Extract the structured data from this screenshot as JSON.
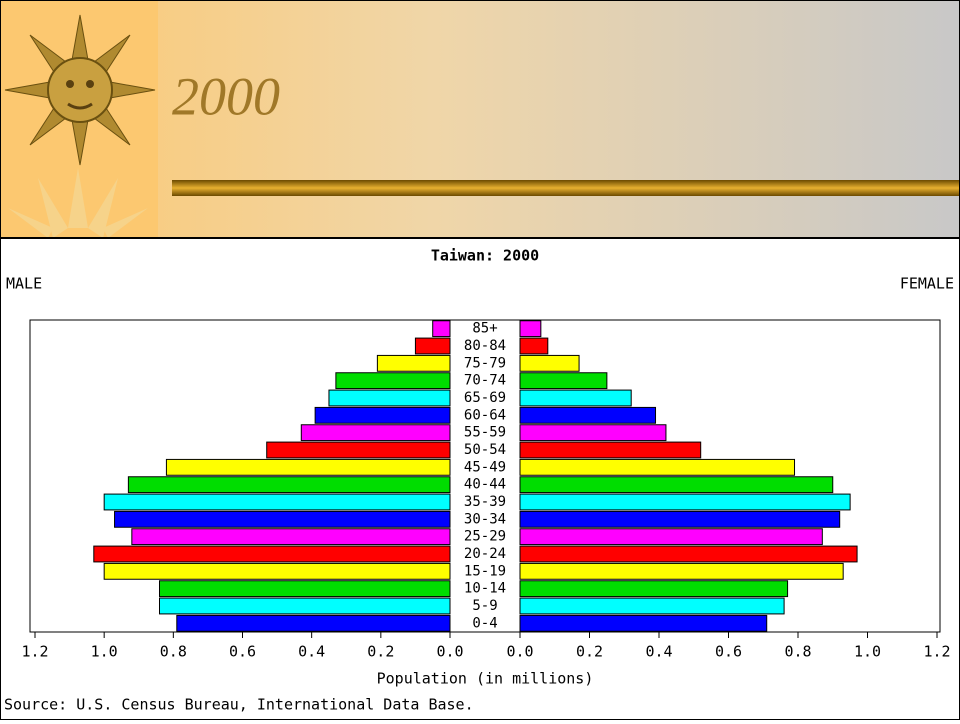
{
  "slide": {
    "title": "2000"
  },
  "chart_data": {
    "type": "pyramid",
    "title": "Taiwan: 2000",
    "categories": [
      "0-4",
      "5-9",
      "10-14",
      "15-19",
      "20-24",
      "25-29",
      "30-34",
      "35-39",
      "40-44",
      "45-49",
      "50-54",
      "55-59",
      "60-64",
      "65-69",
      "70-74",
      "75-79",
      "80-84",
      "85+"
    ],
    "colors": [
      "#0000ff",
      "#00ffff",
      "#00dd00",
      "#ffff00",
      "#ff0000",
      "#ff00ff",
      "#0000ff",
      "#00ffff",
      "#00dd00",
      "#ffff00",
      "#ff0000",
      "#ff00ff",
      "#0000ff",
      "#00ffff",
      "#00dd00",
      "#ffff00",
      "#ff0000",
      "#ff00ff"
    ],
    "series": [
      {
        "name": "MALE",
        "values": [
          0.79,
          0.84,
          0.84,
          1.0,
          1.03,
          0.92,
          0.97,
          1.0,
          0.93,
          0.82,
          0.53,
          0.43,
          0.39,
          0.35,
          0.33,
          0.21,
          0.1,
          0.05
        ]
      },
      {
        "name": "FEMALE",
        "values": [
          0.71,
          0.76,
          0.77,
          0.93,
          0.97,
          0.87,
          0.92,
          0.95,
          0.9,
          0.79,
          0.52,
          0.42,
          0.39,
          0.32,
          0.25,
          0.17,
          0.08,
          0.06
        ]
      }
    ],
    "xlim": [
      0,
      1.2
    ],
    "xticks": [
      {
        "value": 0,
        "label": "0.0"
      },
      0.2,
      0.4,
      0.6,
      0.8,
      {
        "value": 1,
        "label": "1.0"
      },
      1.2
    ],
    "xlabel": "Population (in millions)",
    "source": "Source: U.S. Census Bureau, International Data Base."
  }
}
